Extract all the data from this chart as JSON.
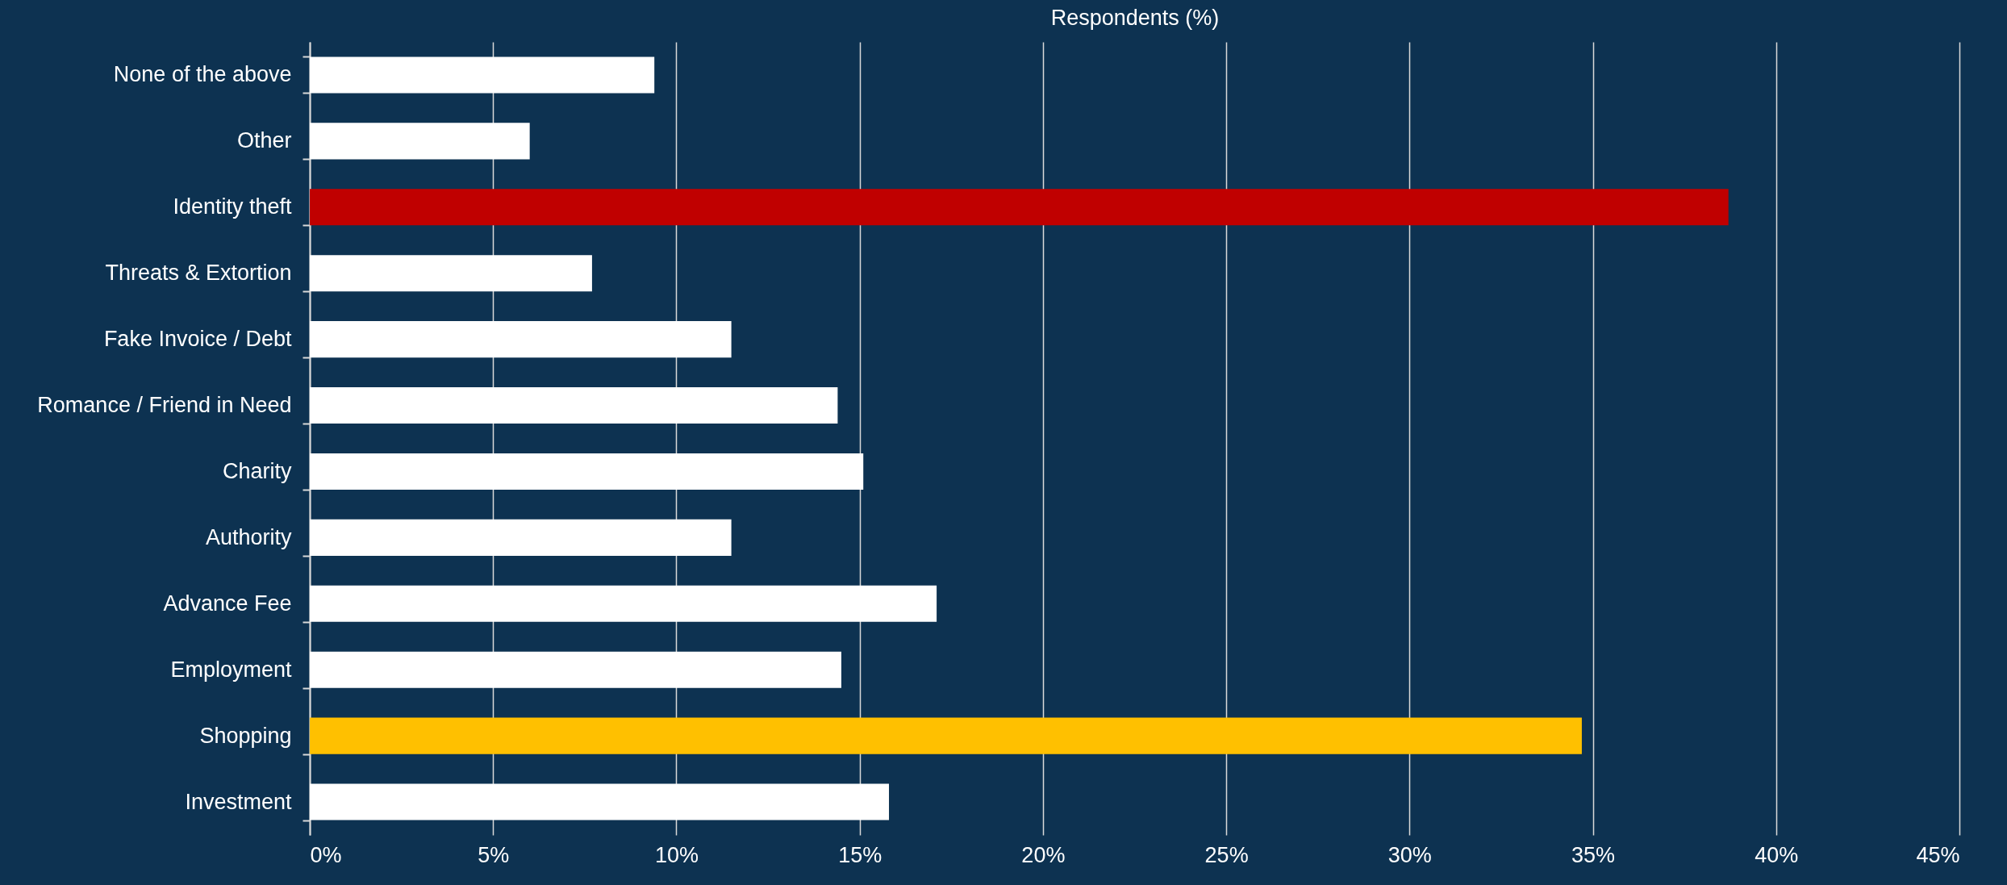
{
  "chart_data": {
    "type": "bar",
    "orientation": "horizontal",
    "xlabel": "Respondents (%)",
    "categories": [
      "None of the above",
      "Other",
      "Identity theft",
      "Threats & Extortion",
      "Fake Invoice / Debt",
      "Romance / Friend in Need",
      "Charity",
      "Authority",
      "Advance Fee",
      "Employment",
      "Shopping",
      "Investment"
    ],
    "values": [
      9.4,
      6.0,
      38.7,
      7.7,
      11.5,
      14.4,
      15.1,
      11.5,
      17.1,
      14.5,
      34.7,
      15.8
    ],
    "colors": [
      "#ffffff",
      "#ffffff",
      "#c00000",
      "#ffffff",
      "#ffffff",
      "#ffffff",
      "#ffffff",
      "#ffffff",
      "#ffffff",
      "#ffffff",
      "#ffc000",
      "#ffffff"
    ],
    "xlim": [
      0,
      45
    ],
    "xticks": [
      {
        "value": 0,
        "label": "0%"
      },
      {
        "value": 5,
        "label": "5%"
      },
      {
        "value": 10,
        "label": "10%"
      },
      {
        "value": 15,
        "label": "15%"
      },
      {
        "value": 20,
        "label": "20%"
      },
      {
        "value": 25,
        "label": "25%"
      },
      {
        "value": 30,
        "label": "30%"
      },
      {
        "value": 35,
        "label": "35%"
      },
      {
        "value": 40,
        "label": "40%"
      },
      {
        "value": 45,
        "label": "45%"
      }
    ],
    "grid": "x"
  }
}
